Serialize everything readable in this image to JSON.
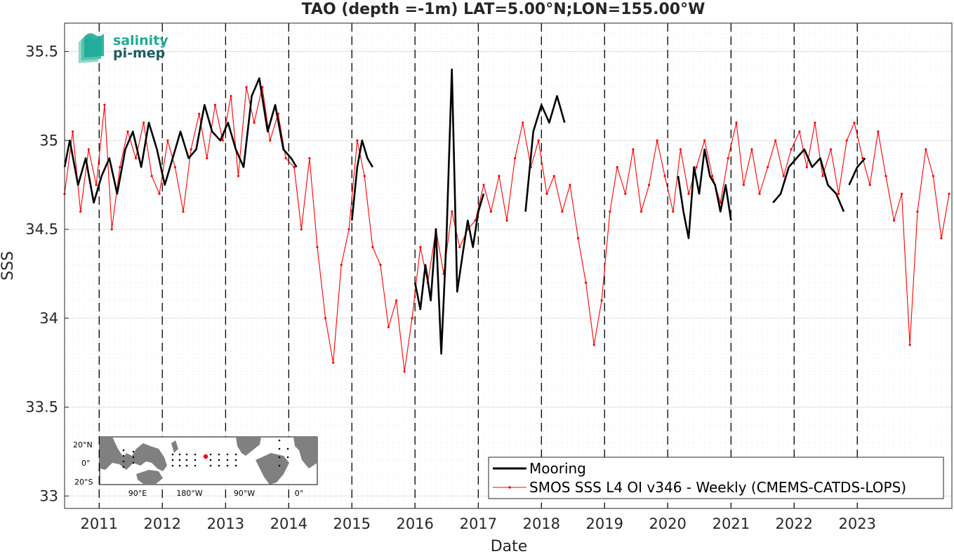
{
  "chart_data": {
    "type": "line",
    "title": "TAO (depth =-1m) LAT=5.00°N;LON=155.00°W",
    "xlabel": "Date",
    "ylabel": "SSS",
    "xlim": [
      "2010-06-15",
      "2024-07-01"
    ],
    "ylim": [
      32.93,
      35.66
    ],
    "x_ticks": [
      "2011",
      "2012",
      "2013",
      "2014",
      "2015",
      "2016",
      "2017",
      "2018",
      "2019",
      "2020",
      "2021",
      "2022",
      "2023"
    ],
    "x_tick_dates": [
      "2011-01-01",
      "2012-01-01",
      "2013-01-01",
      "2014-01-01",
      "2015-01-01",
      "2016-01-01",
      "2017-01-01",
      "2018-01-01",
      "2019-01-01",
      "2020-01-01",
      "2021-01-01",
      "2022-01-01",
      "2023-01-01"
    ],
    "y_ticks": [
      33,
      33.5,
      34,
      34.5,
      35,
      35.5
    ],
    "y_tick_labels": [
      "33",
      "33.5",
      "34",
      "34.5",
      "35",
      "35.5"
    ],
    "year_boundary_lines": "dashed black vertical lines at each Jan 1",
    "grid": true,
    "legend_position": "bottom-right",
    "series": [
      {
        "name": "Mooring",
        "color": "#000000",
        "style": "thick line",
        "segments": [
          {
            "x": [
              "2010-06-15",
              "2010-07-15",
              "2010-09-01",
              "2010-10-15",
              "2010-12-01",
              "2011-01-15",
              "2011-03-01",
              "2011-04-15",
              "2011-06-01",
              "2011-07-15",
              "2011-09-01",
              "2011-10-15",
              "2011-12-01",
              "2012-01-15",
              "2012-03-01",
              "2012-04-15",
              "2012-06-01",
              "2012-07-15",
              "2012-09-01",
              "2012-10-15",
              "2012-12-01",
              "2013-01-15",
              "2013-03-01",
              "2013-04-15",
              "2013-06-01",
              "2013-07-15",
              "2013-09-01",
              "2013-10-15",
              "2013-12-01",
              "2014-01-15",
              "2014-02-15"
            ],
            "y": [
              34.85,
              35.0,
              34.75,
              34.9,
              34.65,
              34.8,
              34.9,
              34.7,
              34.95,
              35.05,
              34.85,
              35.1,
              34.95,
              34.75,
              34.9,
              35.05,
              34.9,
              34.95,
              35.2,
              35.05,
              35.0,
              35.1,
              34.95,
              34.85,
              35.25,
              35.35,
              35.05,
              35.2,
              34.95,
              34.9,
              34.85
            ]
          },
          {
            "x": [
              "2015-01-01",
              "2015-02-01",
              "2015-03-01",
              "2015-04-01",
              "2015-05-01"
            ],
            "y": [
              34.55,
              34.85,
              35.0,
              34.9,
              34.85
            ]
          },
          {
            "x": [
              "2016-01-01",
              "2016-02-01",
              "2016-03-01",
              "2016-04-01",
              "2016-05-01",
              "2016-06-01",
              "2016-07-01",
              "2016-08-01",
              "2016-09-01",
              "2016-10-01",
              "2016-11-01",
              "2016-12-01",
              "2017-01-01",
              "2017-02-01"
            ],
            "y": [
              34.2,
              34.05,
              34.3,
              34.1,
              34.5,
              33.8,
              34.45,
              35.4,
              34.15,
              34.35,
              34.55,
              34.4,
              34.6,
              34.7
            ]
          },
          {
            "x": [
              "2017-10-01",
              "2017-11-15",
              "2018-01-01",
              "2018-02-15",
              "2018-04-01",
              "2018-05-15"
            ],
            "y": [
              34.6,
              35.05,
              35.2,
              35.1,
              35.25,
              35.1
            ]
          },
          {
            "x": [
              "2020-03-01",
              "2020-04-01",
              "2020-05-01",
              "2020-06-01",
              "2020-07-01",
              "2020-08-01",
              "2020-09-01",
              "2020-10-01",
              "2020-11-01",
              "2020-12-01",
              "2021-01-01"
            ],
            "y": [
              34.8,
              34.6,
              34.45,
              34.85,
              34.7,
              34.95,
              34.8,
              34.75,
              34.6,
              34.75,
              34.55
            ]
          },
          {
            "x": [
              "2021-09-01",
              "2021-10-15",
              "2021-12-01",
              "2022-01-15",
              "2022-03-01",
              "2022-04-15",
              "2022-06-01",
              "2022-07-15",
              "2022-09-01",
              "2022-10-15"
            ],
            "y": [
              34.65,
              34.7,
              34.85,
              34.9,
              34.95,
              34.85,
              34.9,
              34.75,
              34.7,
              34.6
            ]
          },
          {
            "x": [
              "2022-11-15",
              "2023-01-01",
              "2023-02-15"
            ],
            "y": [
              34.75,
              34.85,
              34.9
            ]
          }
        ]
      },
      {
        "name": "SMOS SSS L4 OI v346 - Weekly (CMEMS-CATDS-LOPS)",
        "color": "#ff0000",
        "style": "thin line with dot markers",
        "x": [
          "2010-06-15",
          "2010-08-01",
          "2010-09-15",
          "2010-11-01",
          "2010-12-15",
          "2011-02-01",
          "2011-03-15",
          "2011-05-01",
          "2011-06-15",
          "2011-08-01",
          "2011-09-15",
          "2011-11-01",
          "2011-12-15",
          "2012-02-01",
          "2012-03-15",
          "2012-05-01",
          "2012-06-15",
          "2012-08-01",
          "2012-09-15",
          "2012-11-01",
          "2012-12-15",
          "2013-02-01",
          "2013-03-15",
          "2013-05-01",
          "2013-06-15",
          "2013-08-01",
          "2013-09-15",
          "2013-11-01",
          "2013-12-15",
          "2014-02-01",
          "2014-03-15",
          "2014-05-01",
          "2014-06-15",
          "2014-08-01",
          "2014-09-15",
          "2014-11-01",
          "2014-12-15",
          "2015-02-01",
          "2015-03-15",
          "2015-05-01",
          "2015-06-15",
          "2015-08-01",
          "2015-09-15",
          "2015-11-01",
          "2015-12-15",
          "2016-02-01",
          "2016-03-15",
          "2016-05-01",
          "2016-06-15",
          "2016-08-01",
          "2016-09-15",
          "2016-11-01",
          "2016-12-15",
          "2017-02-01",
          "2017-03-15",
          "2017-05-01",
          "2017-06-15",
          "2017-08-01",
          "2017-09-15",
          "2017-11-01",
          "2017-12-15",
          "2018-02-01",
          "2018-03-15",
          "2018-05-01",
          "2018-06-15",
          "2018-08-01",
          "2018-09-15",
          "2018-11-01",
          "2018-12-15",
          "2019-02-01",
          "2019-03-15",
          "2019-05-01",
          "2019-06-15",
          "2019-08-01",
          "2019-09-15",
          "2019-11-01",
          "2019-12-15",
          "2020-02-01",
          "2020-03-15",
          "2020-05-01",
          "2020-06-15",
          "2020-08-01",
          "2020-09-15",
          "2020-11-01",
          "2020-12-15",
          "2021-02-01",
          "2021-03-15",
          "2021-05-01",
          "2021-06-15",
          "2021-08-01",
          "2021-09-15",
          "2021-11-01",
          "2021-12-15",
          "2022-02-01",
          "2022-03-15",
          "2022-05-01",
          "2022-06-15",
          "2022-08-01",
          "2022-09-15",
          "2022-11-01",
          "2022-12-15",
          "2023-02-01",
          "2023-03-15",
          "2023-05-01",
          "2023-06-15",
          "2023-08-01",
          "2023-09-15",
          "2023-11-01",
          "2023-12-15",
          "2024-02-01",
          "2024-03-15",
          "2024-05-01",
          "2024-06-15"
        ],
        "y": [
          34.7,
          35.05,
          34.6,
          34.95,
          34.75,
          35.2,
          34.5,
          34.85,
          35.05,
          34.9,
          35.1,
          34.8,
          34.7,
          35.0,
          34.85,
          34.6,
          34.95,
          35.15,
          34.9,
          35.2,
          35.0,
          35.25,
          34.8,
          35.3,
          35.1,
          35.3,
          35.0,
          35.15,
          34.9,
          34.85,
          34.5,
          34.9,
          34.4,
          34.0,
          33.75,
          34.3,
          34.5,
          35.0,
          34.8,
          34.4,
          34.3,
          33.95,
          34.1,
          33.7,
          34.0,
          34.4,
          34.2,
          34.5,
          34.25,
          34.6,
          34.4,
          34.5,
          34.55,
          34.75,
          34.6,
          34.8,
          34.55,
          34.9,
          35.1,
          34.85,
          35.0,
          34.7,
          34.8,
          34.6,
          34.75,
          34.45,
          34.2,
          33.85,
          34.1,
          34.6,
          34.85,
          34.7,
          34.95,
          34.6,
          34.75,
          35.0,
          34.8,
          34.6,
          34.95,
          34.7,
          34.85,
          35.0,
          34.8,
          34.65,
          34.9,
          35.1,
          34.75,
          34.95,
          34.7,
          34.85,
          35.0,
          34.8,
          34.95,
          35.05,
          34.85,
          35.1,
          34.8,
          34.95,
          34.7,
          35.0,
          35.1,
          34.9,
          34.75,
          35.05,
          34.8,
          34.55,
          34.7,
          33.85,
          34.6,
          34.95,
          34.8,
          34.45,
          34.7
        ]
      }
    ],
    "legend": [
      "Mooring",
      "SMOS SSS L4 OI v346 - Weekly (CMEMS-CATDS-LOPS)"
    ],
    "logo_text": [
      "salinity",
      "pi-mep"
    ],
    "inset_map": {
      "lat_labels": [
        "20°N",
        "0°",
        "20°S"
      ],
      "lon_labels": [
        "90°E",
        "180°W",
        "90°W",
        "0°"
      ]
    }
  },
  "colors": {
    "mooring": "#000000",
    "smos": "#ff0000",
    "grid": "#e0e0e0",
    "axis_text": "#262626",
    "logo_teal": "#1faa98",
    "logo_dark": "#1e5b63",
    "land": "#808080"
  }
}
